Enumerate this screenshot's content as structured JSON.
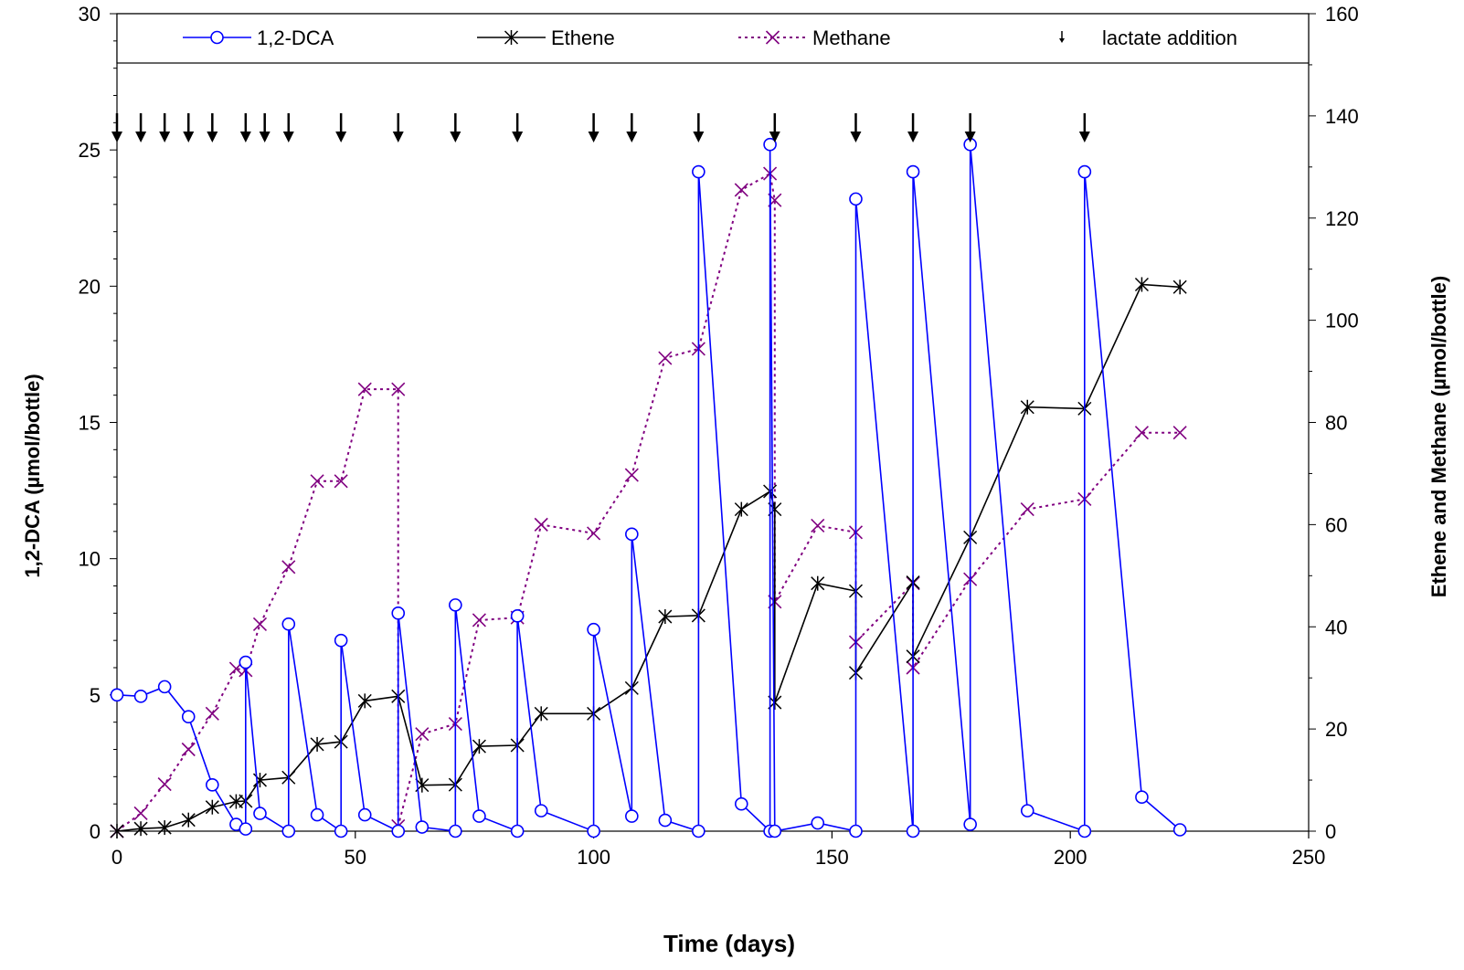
{
  "chart_data": {
    "type": "line",
    "xlabel": "Time (days)",
    "ylabel_left": "1,2-DCA (µmol/bottle)",
    "ylabel_right": "Ethene and Methane (µmol/bottle)",
    "xlim": [
      0,
      250
    ],
    "ylim_left": [
      0,
      30
    ],
    "ylim_right": [
      0,
      160
    ],
    "x_ticks": [
      "0",
      "50",
      "100",
      "150",
      "200",
      "250"
    ],
    "y_left_ticks": [
      "0",
      "5",
      "10",
      "15",
      "20",
      "25",
      "30"
    ],
    "y_right_ticks": [
      "0",
      "20",
      "40",
      "60",
      "80",
      "100",
      "120",
      "140",
      "160"
    ],
    "legend_position": "top",
    "grid": false,
    "series": [
      {
        "name": "1,2-DCA",
        "axis": "left",
        "color": "#0000ff",
        "marker": "circle",
        "dash": "solid",
        "points": [
          [
            0,
            5.0
          ],
          [
            5,
            4.95
          ],
          [
            10,
            5.3
          ],
          [
            15,
            4.2
          ],
          [
            20,
            1.7
          ],
          [
            25,
            0.25
          ],
          [
            27,
            0.08
          ],
          [
            27,
            6.2
          ],
          [
            30,
            0.65
          ],
          [
            36,
            0.0
          ],
          [
            36,
            7.6
          ],
          [
            42,
            0.6
          ],
          [
            47,
            0.0
          ],
          [
            47,
            7.0
          ],
          [
            52,
            0.6
          ],
          [
            59,
            0.0
          ],
          [
            59,
            8.0
          ],
          [
            64,
            0.15
          ],
          [
            71,
            0.0
          ],
          [
            71,
            8.3
          ],
          [
            76,
            0.55
          ],
          [
            84,
            0.0
          ],
          [
            84,
            7.9
          ],
          [
            89,
            0.75
          ],
          [
            100,
            0.0
          ],
          [
            100,
            7.4
          ],
          [
            108,
            0.55
          ],
          [
            108,
            10.9
          ],
          [
            115,
            0.4
          ],
          [
            122,
            0.0
          ],
          [
            122,
            24.2
          ],
          [
            131,
            1.0
          ],
          [
            137,
            0.0
          ],
          [
            137,
            25.2
          ],
          [
            138,
            0.0
          ],
          [
            147,
            0.3
          ],
          [
            155,
            0.0
          ],
          [
            155,
            23.2
          ],
          [
            167,
            0.0
          ],
          [
            167,
            24.2
          ],
          [
            179,
            0.25
          ],
          [
            179,
            25.2
          ],
          [
            191,
            0.75
          ],
          [
            203,
            0.0
          ],
          [
            203,
            24.2
          ],
          [
            215,
            1.25
          ],
          [
            223,
            0.05
          ]
        ]
      },
      {
        "name": "Ethene",
        "axis": "right",
        "color": "#000000",
        "marker": "asterisk",
        "dash": "solid",
        "points": [
          [
            0,
            0
          ],
          [
            5,
            0.5
          ],
          [
            10,
            0.7
          ],
          [
            15,
            2.2
          ],
          [
            20,
            4.7
          ],
          [
            25,
            5.8
          ],
          [
            27,
            5.9
          ],
          [
            30,
            10
          ],
          [
            36,
            10.5
          ],
          [
            42,
            17
          ],
          [
            47,
            17.5
          ],
          [
            52,
            25.5
          ],
          [
            59,
            26.4
          ],
          [
            64,
            9
          ],
          [
            71,
            9.1
          ],
          [
            76,
            16.6
          ],
          [
            84,
            16.8
          ],
          [
            89,
            23
          ],
          [
            100,
            23
          ],
          [
            108,
            28
          ],
          [
            115,
            42
          ],
          [
            122,
            42.2
          ],
          [
            131,
            63
          ],
          [
            137,
            66.5
          ],
          [
            138,
            63
          ],
          [
            138,
            25.2
          ],
          [
            147,
            48.5
          ],
          [
            155,
            47
          ],
          [
            155,
            31
          ],
          [
            167,
            48.7
          ],
          [
            167,
            34.2
          ],
          [
            179,
            57.5
          ],
          [
            191,
            83
          ],
          [
            203,
            82.7
          ],
          [
            215,
            107
          ],
          [
            223,
            106.5
          ]
        ]
      },
      {
        "name": "Methane",
        "axis": "right",
        "color": "#800080",
        "marker": "x",
        "dash": "dotted",
        "points": [
          [
            0,
            0
          ],
          [
            5,
            3.5
          ],
          [
            10,
            9.2
          ],
          [
            15,
            16
          ],
          [
            20,
            23
          ],
          [
            25,
            31.8
          ],
          [
            27,
            31.5
          ],
          [
            30,
            40.5
          ],
          [
            36,
            51.7
          ],
          [
            42,
            68.5
          ],
          [
            47,
            68.5
          ],
          [
            52,
            86.5
          ],
          [
            59,
            86.5
          ],
          [
            59,
            1
          ],
          [
            64,
            19
          ],
          [
            71,
            21
          ],
          [
            76,
            41.3
          ],
          [
            84,
            41.8
          ],
          [
            89,
            60
          ],
          [
            100,
            58.3
          ],
          [
            108,
            69.7
          ],
          [
            115,
            92.6
          ],
          [
            122,
            94.4
          ],
          [
            131,
            125.5
          ],
          [
            137,
            128.7
          ],
          [
            138,
            123.5
          ],
          [
            138,
            44.9
          ],
          [
            147,
            59.8
          ],
          [
            155,
            58.5
          ],
          [
            155,
            37
          ],
          [
            167,
            48.5
          ],
          [
            167,
            32
          ],
          [
            179,
            49.3
          ],
          [
            191,
            63
          ],
          [
            203,
            65
          ],
          [
            215,
            78
          ],
          [
            223,
            78
          ]
        ]
      }
    ],
    "lactate_addition": {
      "name": "lactate addition",
      "days": [
        0,
        5,
        10,
        15,
        20,
        27,
        31,
        36,
        47,
        59,
        71,
        84,
        100,
        108,
        122,
        138,
        155,
        167,
        179,
        203
      ]
    }
  }
}
